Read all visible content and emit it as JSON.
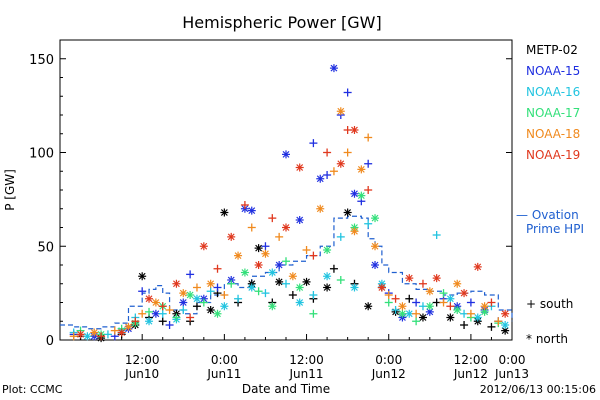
{
  "chart_data": {
    "type": "scatter",
    "title": "Hemispheric Power [GW]",
    "ylabel": "P [GW]",
    "xlabel": "Date and Time",
    "ylim": [
      0,
      160
    ],
    "xlim": [
      0,
      66
    ],
    "y_ticks": [
      0,
      50,
      100,
      150
    ],
    "x_ticks": [
      {
        "x": 12,
        "top": "12:00",
        "bottom": "Jun10"
      },
      {
        "x": 24,
        "top": "0:00",
        "bottom": "Jun11"
      },
      {
        "x": 36,
        "top": "12:00",
        "bottom": "Jun11"
      },
      {
        "x": 48,
        "top": "0:00",
        "bottom": "Jun12"
      },
      {
        "x": 60,
        "top": "12:00",
        "bottom": "Jun12"
      },
      {
        "x": 72,
        "top": "0:00",
        "bottom": "Jun13"
      }
    ],
    "x_unit_note": "hours since 2012-06-09 00:00",
    "legend_position": "right",
    "marker_legend": [
      {
        "symbol": "+",
        "label": "south"
      },
      {
        "symbol": "*",
        "label": "north"
      }
    ],
    "series": [
      {
        "name": "METP-02",
        "color": "#000000",
        "points": [
          [
            3,
            2,
            "+"
          ],
          [
            6,
            1,
            "*"
          ],
          [
            9,
            3,
            "+"
          ],
          [
            11,
            8,
            "*"
          ],
          [
            12,
            34,
            "*"
          ],
          [
            13,
            12,
            "+"
          ],
          [
            15,
            10,
            "+"
          ],
          [
            17,
            14,
            "*"
          ],
          [
            19,
            10,
            "+"
          ],
          [
            20,
            18,
            "+"
          ],
          [
            22,
            16,
            "*"
          ],
          [
            23,
            25,
            "+"
          ],
          [
            24,
            68,
            "*"
          ],
          [
            26,
            20,
            "+"
          ],
          [
            28,
            30,
            "*"
          ],
          [
            29,
            49,
            "*"
          ],
          [
            31,
            20,
            "+"
          ],
          [
            32,
            31,
            "*"
          ],
          [
            34,
            24,
            "+"
          ],
          [
            36,
            31,
            "*"
          ],
          [
            37,
            22,
            "+"
          ],
          [
            39,
            28,
            "*"
          ],
          [
            40,
            38,
            "+"
          ],
          [
            42,
            68,
            "*"
          ],
          [
            43,
            30,
            "+"
          ],
          [
            45,
            18,
            "*"
          ],
          [
            47,
            28,
            "+"
          ],
          [
            49,
            15,
            "*"
          ],
          [
            51,
            22,
            "+"
          ],
          [
            53,
            12,
            "*"
          ],
          [
            55,
            20,
            "+"
          ],
          [
            57,
            12,
            "*"
          ],
          [
            59,
            8,
            "+"
          ],
          [
            61,
            10,
            "*"
          ],
          [
            63,
            7,
            "+"
          ],
          [
            65,
            5,
            "*"
          ]
        ]
      },
      {
        "name": "NOAA-15",
        "color": "#1f2fe0",
        "points": [
          [
            2,
            3,
            "+"
          ],
          [
            5,
            2,
            "*"
          ],
          [
            8,
            2,
            "+"
          ],
          [
            10,
            6,
            "*"
          ],
          [
            12,
            26,
            "+"
          ],
          [
            14,
            14,
            "*"
          ],
          [
            16,
            8,
            "+"
          ],
          [
            18,
            20,
            "*"
          ],
          [
            19,
            35,
            "+"
          ],
          [
            21,
            22,
            "*"
          ],
          [
            23,
            28,
            "+"
          ],
          [
            25,
            32,
            "*"
          ],
          [
            27,
            70,
            "*"
          ],
          [
            28,
            69,
            "*"
          ],
          [
            30,
            50,
            "+"
          ],
          [
            32,
            40,
            "*"
          ],
          [
            33,
            99,
            "*"
          ],
          [
            35,
            64,
            "*"
          ],
          [
            37,
            105,
            "+"
          ],
          [
            38,
            86,
            "*"
          ],
          [
            39,
            88,
            "+"
          ],
          [
            40,
            145,
            "*"
          ],
          [
            41,
            120,
            "+"
          ],
          [
            42,
            132,
            "+"
          ],
          [
            43,
            78,
            "*"
          ],
          [
            44,
            74,
            "+"
          ],
          [
            45,
            94,
            "+"
          ],
          [
            46,
            40,
            "*"
          ],
          [
            48,
            25,
            "+"
          ],
          [
            50,
            12,
            "*"
          ],
          [
            52,
            20,
            "+"
          ],
          [
            54,
            15,
            "*"
          ],
          [
            56,
            22,
            "+"
          ],
          [
            58,
            18,
            "*"
          ],
          [
            60,
            20,
            "+"
          ],
          [
            62,
            16,
            "*"
          ],
          [
            64,
            10,
            "+"
          ]
        ]
      },
      {
        "name": "NOAA-16",
        "color": "#22c4e0",
        "points": [
          [
            2,
            4,
            "+"
          ],
          [
            4,
            2,
            "*"
          ],
          [
            7,
            3,
            "+"
          ],
          [
            9,
            5,
            "*"
          ],
          [
            11,
            12,
            "+"
          ],
          [
            13,
            10,
            "*"
          ],
          [
            15,
            14,
            "+"
          ],
          [
            17,
            11,
            "*"
          ],
          [
            18,
            16,
            "+"
          ],
          [
            20,
            22,
            "*"
          ],
          [
            22,
            26,
            "+"
          ],
          [
            24,
            18,
            "*"
          ],
          [
            26,
            22,
            "+"
          ],
          [
            28,
            28,
            "*"
          ],
          [
            30,
            25,
            "+"
          ],
          [
            31,
            36,
            "*"
          ],
          [
            33,
            30,
            "+"
          ],
          [
            35,
            20,
            "*"
          ],
          [
            37,
            24,
            "+"
          ],
          [
            39,
            34,
            "*"
          ],
          [
            41,
            55,
            "+"
          ],
          [
            43,
            28,
            "*"
          ],
          [
            45,
            62,
            "+"
          ],
          [
            47,
            30,
            "*"
          ],
          [
            49,
            16,
            "+"
          ],
          [
            51,
            14,
            "*"
          ],
          [
            53,
            18,
            "+"
          ],
          [
            55,
            56,
            "+"
          ],
          [
            57,
            22,
            "*"
          ],
          [
            59,
            14,
            "+"
          ],
          [
            61,
            12,
            "*"
          ],
          [
            63,
            18,
            "+"
          ],
          [
            65,
            8,
            "*"
          ]
        ]
      },
      {
        "name": "NOAA-17",
        "color": "#33e07a",
        "points": [
          [
            3,
            5,
            "+"
          ],
          [
            6,
            3,
            "*"
          ],
          [
            9,
            6,
            "+"
          ],
          [
            11,
            9,
            "*"
          ],
          [
            13,
            15,
            "+"
          ],
          [
            15,
            18,
            "*"
          ],
          [
            17,
            12,
            "+"
          ],
          [
            19,
            24,
            "*"
          ],
          [
            21,
            20,
            "+"
          ],
          [
            23,
            14,
            "*"
          ],
          [
            25,
            30,
            "+"
          ],
          [
            27,
            36,
            "*"
          ],
          [
            29,
            26,
            "+"
          ],
          [
            31,
            18,
            "*"
          ],
          [
            33,
            42,
            "+"
          ],
          [
            35,
            28,
            "*"
          ],
          [
            37,
            14,
            "+"
          ],
          [
            39,
            48,
            "*"
          ],
          [
            41,
            32,
            "+"
          ],
          [
            43,
            60,
            "*"
          ],
          [
            44,
            77,
            "*"
          ],
          [
            46,
            65,
            "*"
          ],
          [
            48,
            20,
            "+"
          ],
          [
            50,
            14,
            "*"
          ],
          [
            52,
            10,
            "+"
          ],
          [
            54,
            18,
            "*"
          ],
          [
            56,
            25,
            "+"
          ],
          [
            58,
            16,
            "*"
          ],
          [
            60,
            12,
            "+"
          ],
          [
            62,
            15,
            "*"
          ],
          [
            64,
            9,
            "+"
          ]
        ]
      },
      {
        "name": "NOAA-18",
        "color": "#f08a1e",
        "points": [
          [
            2,
            2,
            "+"
          ],
          [
            5,
            4,
            "*"
          ],
          [
            8,
            5,
            "+"
          ],
          [
            10,
            7,
            "*"
          ],
          [
            12,
            14,
            "+"
          ],
          [
            14,
            20,
            "*"
          ],
          [
            16,
            16,
            "+"
          ],
          [
            18,
            25,
            "*"
          ],
          [
            20,
            28,
            "+"
          ],
          [
            22,
            30,
            "*"
          ],
          [
            24,
            24,
            "+"
          ],
          [
            26,
            45,
            "*"
          ],
          [
            28,
            60,
            "+"
          ],
          [
            30,
            46,
            "*"
          ],
          [
            32,
            55,
            "+"
          ],
          [
            34,
            34,
            "*"
          ],
          [
            36,
            48,
            "+"
          ],
          [
            38,
            70,
            "*"
          ],
          [
            40,
            90,
            "+"
          ],
          [
            41,
            122,
            "*"
          ],
          [
            42,
            100,
            "+"
          ],
          [
            43,
            58,
            "*"
          ],
          [
            44,
            91,
            "*"
          ],
          [
            45,
            108,
            "+"
          ],
          [
            46,
            50,
            "*"
          ],
          [
            48,
            24,
            "+"
          ],
          [
            50,
            18,
            "*"
          ],
          [
            52,
            14,
            "+"
          ],
          [
            54,
            26,
            "*"
          ],
          [
            56,
            20,
            "+"
          ],
          [
            58,
            30,
            "*"
          ],
          [
            60,
            14,
            "+"
          ],
          [
            62,
            18,
            "*"
          ],
          [
            64,
            10,
            "+"
          ]
        ]
      },
      {
        "name": "NOAA-19",
        "color": "#e0381e",
        "points": [
          [
            3,
            3,
            "*"
          ],
          [
            6,
            2,
            "+"
          ],
          [
            9,
            4,
            "*"
          ],
          [
            11,
            10,
            "+"
          ],
          [
            13,
            22,
            "*"
          ],
          [
            15,
            18,
            "+"
          ],
          [
            17,
            30,
            "*"
          ],
          [
            19,
            12,
            "+"
          ],
          [
            21,
            50,
            "*"
          ],
          [
            23,
            38,
            "+"
          ],
          [
            25,
            55,
            "*"
          ],
          [
            27,
            72,
            "+"
          ],
          [
            29,
            40,
            "*"
          ],
          [
            31,
            65,
            "+"
          ],
          [
            33,
            60,
            "*"
          ],
          [
            35,
            92,
            "*"
          ],
          [
            37,
            45,
            "+"
          ],
          [
            39,
            100,
            "+"
          ],
          [
            41,
            94,
            "*"
          ],
          [
            42,
            112,
            "+"
          ],
          [
            43,
            112,
            "*"
          ],
          [
            45,
            80,
            "+"
          ],
          [
            47,
            28,
            "*"
          ],
          [
            49,
            22,
            "+"
          ],
          [
            51,
            33,
            "*"
          ],
          [
            53,
            30,
            "+"
          ],
          [
            55,
            33,
            "*"
          ],
          [
            57,
            18,
            "+"
          ],
          [
            59,
            25,
            "*"
          ],
          [
            61,
            39,
            "*"
          ],
          [
            63,
            20,
            "+"
          ],
          [
            65,
            14,
            "*"
          ]
        ]
      }
    ],
    "ovation_series": {
      "name": "— Ovation Prime HPI",
      "color": "#2060d0",
      "x": [
        0,
        2,
        4,
        6,
        8,
        10,
        12,
        13,
        14,
        15,
        16,
        18,
        20,
        22,
        24,
        26,
        28,
        30,
        32,
        34,
        36,
        38,
        40,
        42,
        44,
        45,
        46,
        47,
        48,
        50,
        52,
        54,
        56,
        58,
        60,
        62,
        64,
        66
      ],
      "y": [
        8,
        7,
        6,
        7,
        9,
        18,
        25,
        27,
        29,
        25,
        16,
        14,
        20,
        24,
        30,
        28,
        34,
        36,
        40,
        42,
        45,
        50,
        65,
        66,
        65,
        54,
        50,
        40,
        36,
        30,
        27,
        26,
        24,
        25,
        26,
        24,
        16,
        10
      ]
    },
    "footer": {
      "left": "Plot: CCMC",
      "right": "2012/06/13 00:15:06"
    }
  }
}
